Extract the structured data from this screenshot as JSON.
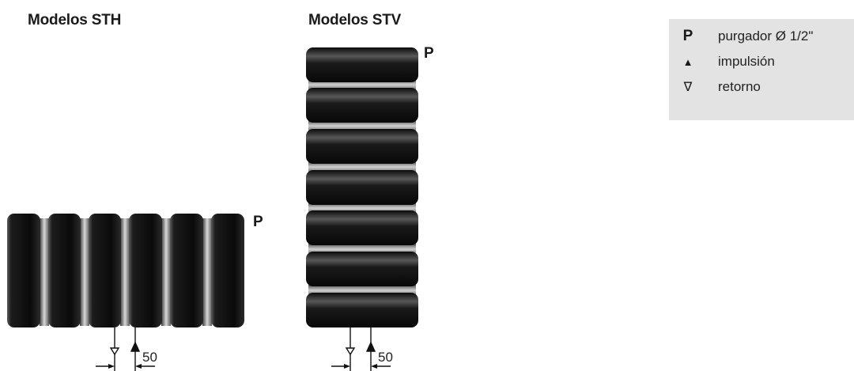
{
  "models": {
    "horizontal": {
      "title": "Modelos STH",
      "vent_label": "P",
      "dimension": "50"
    },
    "vertical": {
      "title": "Modelos STV",
      "vent_label": "P",
      "dimension": "50"
    }
  },
  "legend": {
    "items": [
      {
        "symbol": "P",
        "label": "purgador Ø 1/2\"",
        "icon": "vent-letter"
      },
      {
        "symbol": "▲",
        "label": "impulsión",
        "icon": "filled-triangle-up"
      },
      {
        "symbol": "∇",
        "label": "retorno",
        "icon": "outline-triangle-down"
      }
    ]
  },
  "colors": {
    "tube_dark": "#111111",
    "tube_highlight": "#cfcfcf",
    "legend_background": "#e3e3e3"
  }
}
